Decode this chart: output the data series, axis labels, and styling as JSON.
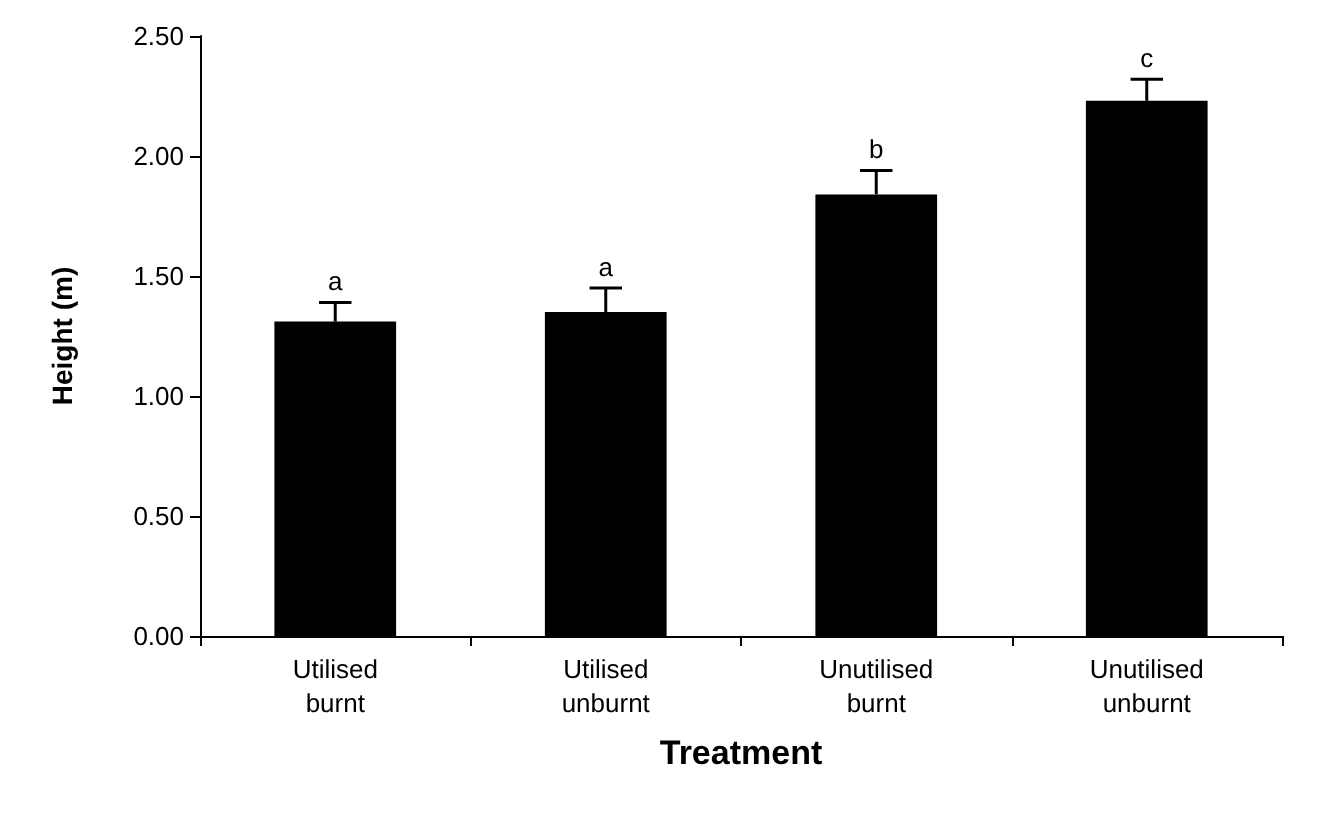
{
  "chart_data": {
    "type": "bar",
    "xlabel": "Treatment",
    "ylabel": "Height (m)",
    "categories": [
      "Utilised\nburnt",
      "Utilised\nunburnt",
      "Unutilised\nburnt",
      "Unutilised\nunburnt"
    ],
    "values": [
      1.31,
      1.35,
      1.84,
      2.23
    ],
    "color": "#000000",
    "errors": [
      [
        1.31,
        1.39
      ],
      [
        1.35,
        1.45
      ],
      [
        1.84,
        1.94
      ],
      [
        2.23,
        2.32
      ]
    ],
    "ylim": [
      0,
      2.5
    ],
    "yticks": [
      {
        "value": 0,
        "label": "0.00"
      },
      {
        "value": 0.5,
        "label": "0.50"
      },
      {
        "value": 1,
        "label": "1.00"
      },
      {
        "value": 1.5,
        "label": "1.50"
      },
      {
        "value": 2,
        "label": "2.00"
      },
      {
        "value": 2.5,
        "label": "2.50"
      }
    ],
    "annotations": [
      {
        "text": "a",
        "x": "Utilised\nburnt",
        "y": 1.39
      },
      {
        "text": "a",
        "x": "Utilised\nunburnt",
        "y": 1.45
      },
      {
        "text": "b",
        "x": "Unutilised\nburnt",
        "y": 1.94
      },
      {
        "text": "c",
        "x": "Unutilised\nunburnt",
        "y": 2.32
      }
    ],
    "grid": false
  }
}
